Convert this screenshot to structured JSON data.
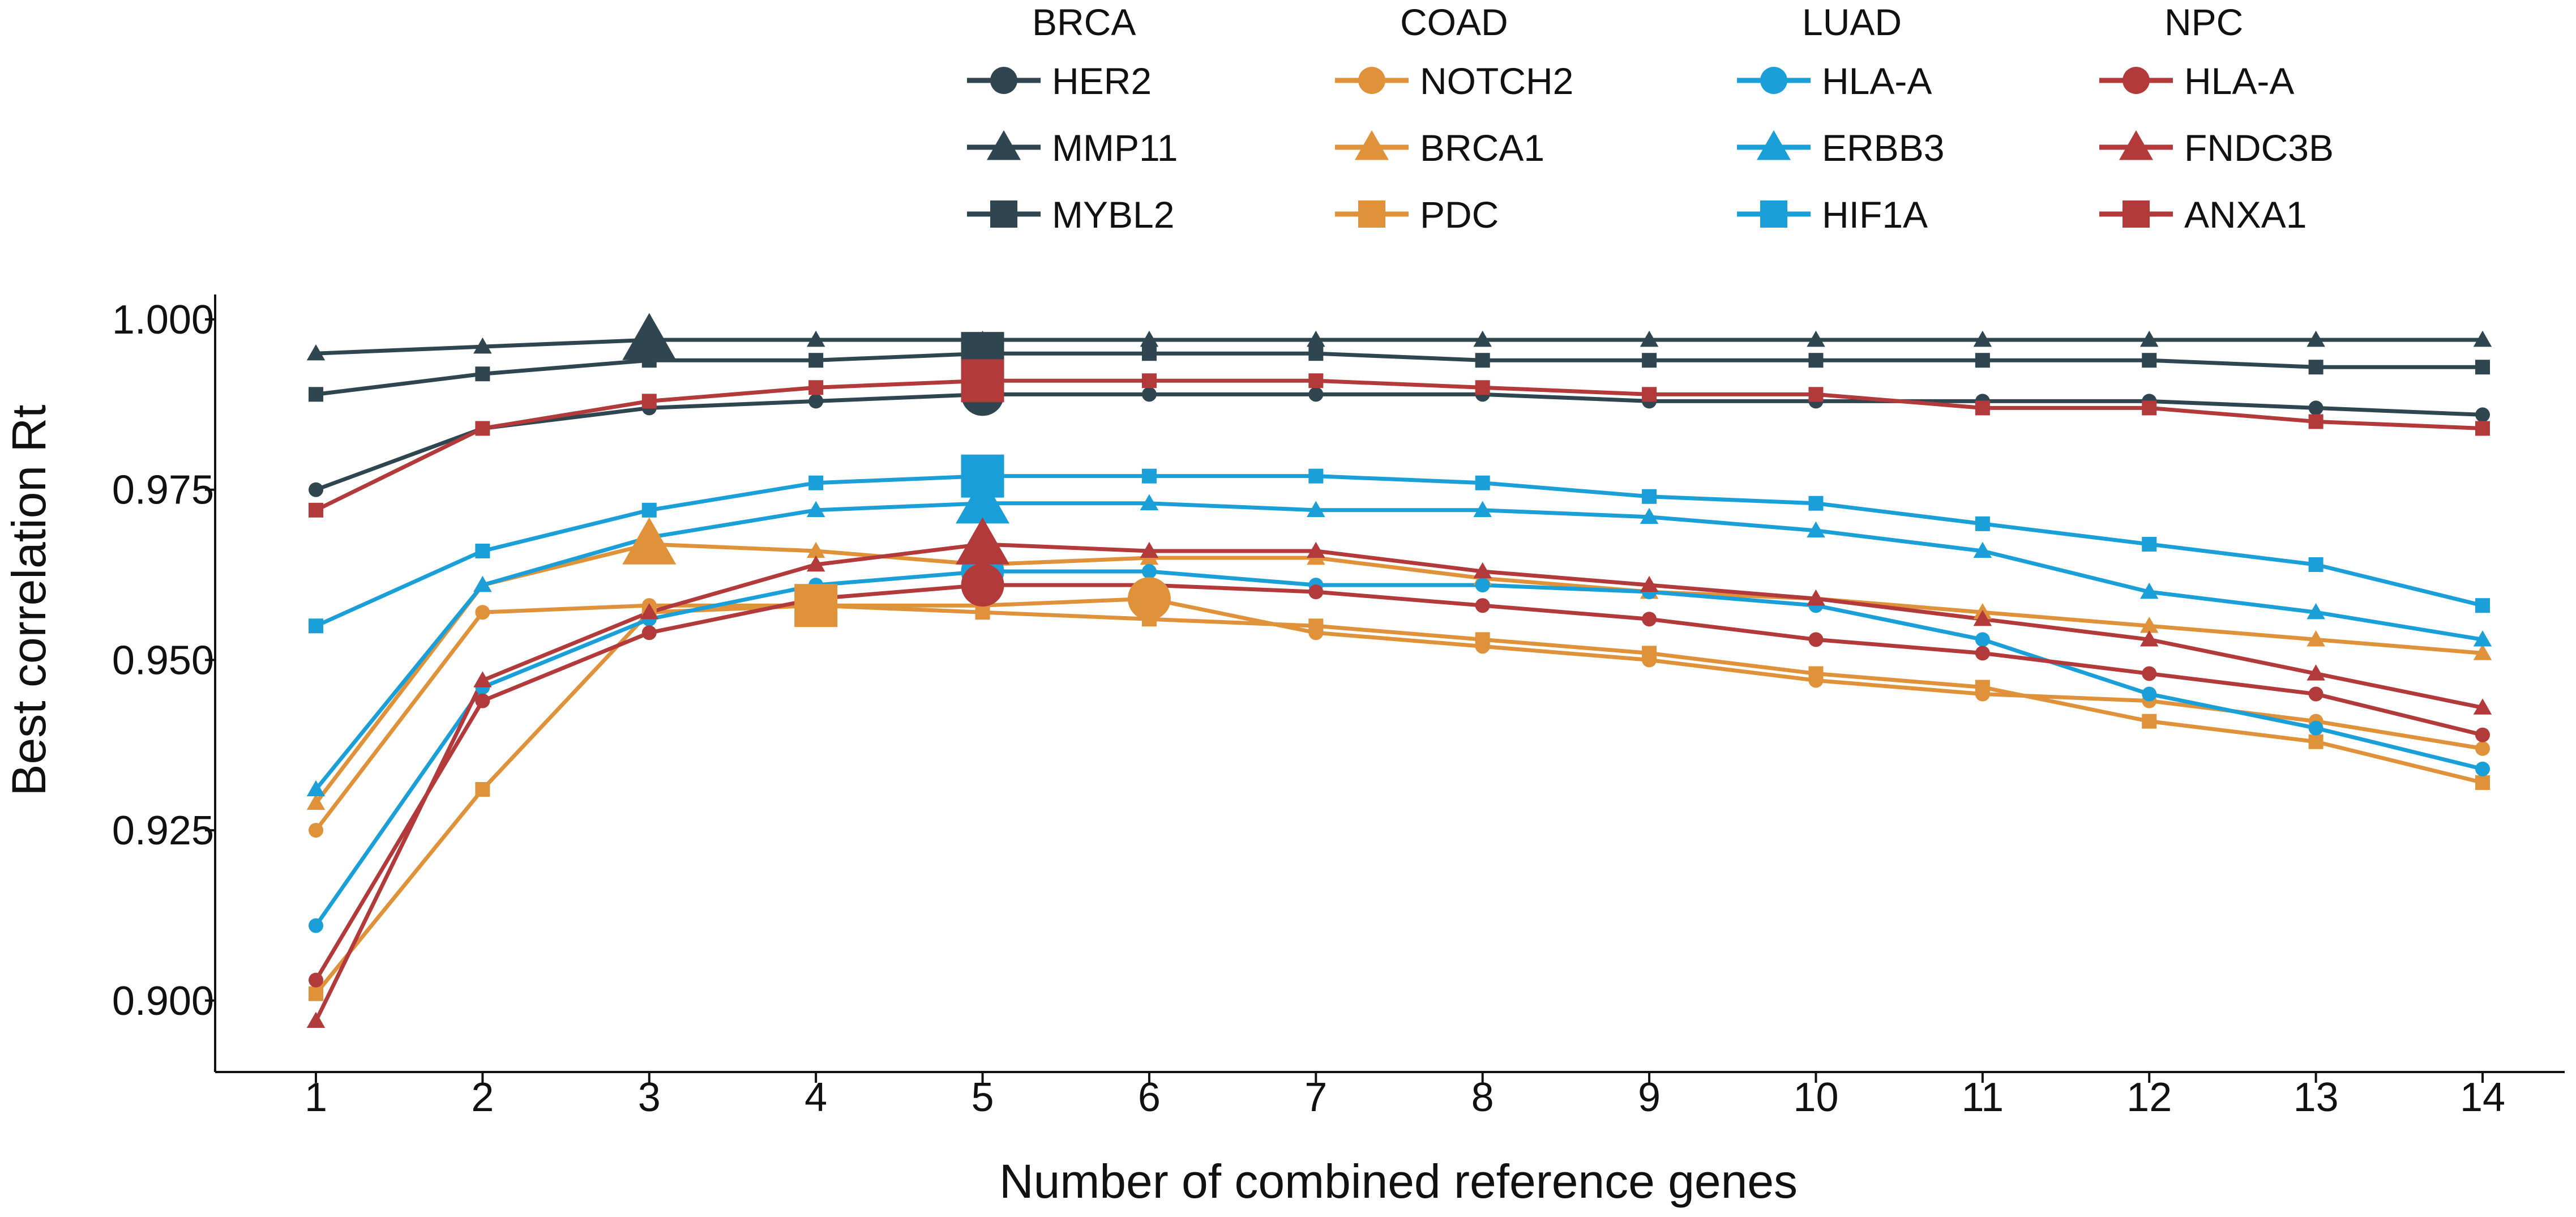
{
  "chart_data": {
    "type": "line",
    "title": "",
    "xlabel": "Number of combined reference genes",
    "ylabel": "Best correlation Rt",
    "x": [
      1,
      2,
      3,
      4,
      5,
      6,
      7,
      8,
      9,
      10,
      11,
      12,
      13,
      14
    ],
    "xticks": [
      "1",
      "2",
      "3",
      "4",
      "5",
      "6",
      "7",
      "8",
      "9",
      "10",
      "11",
      "12",
      "13",
      "14"
    ],
    "yticks": [
      "0.900",
      "0.925",
      "0.950",
      "0.975",
      "1.000"
    ],
    "ytick_values": [
      0.9,
      0.925,
      0.95,
      0.975,
      1.0
    ],
    "xlim": [
      0.4,
      14.5
    ],
    "ylim": [
      0.891,
      1.002
    ],
    "grid": false,
    "legend_position": "top",
    "groups": [
      {
        "name": "BRCA",
        "color": "#2f4550",
        "series_indices": [
          0,
          1,
          2
        ]
      },
      {
        "name": "COAD",
        "color": "#e0923a",
        "series_indices": [
          3,
          4,
          5
        ]
      },
      {
        "name": "LUAD",
        "color": "#1a9fd8",
        "series_indices": [
          6,
          7,
          8
        ]
      },
      {
        "name": "NPC",
        "color": "#b23a3a",
        "series_indices": [
          9,
          10,
          11
        ]
      }
    ],
    "series": [
      {
        "name": "HER2",
        "group": "BRCA",
        "marker": "circle",
        "color": "#2f4550",
        "highlight_x": 5,
        "values": [
          0.975,
          0.984,
          0.987,
          0.988,
          0.989,
          0.989,
          0.989,
          0.989,
          0.988,
          0.988,
          0.988,
          0.988,
          0.987,
          0.986
        ]
      },
      {
        "name": "MMP11",
        "group": "BRCA",
        "marker": "triangle",
        "color": "#2f4550",
        "highlight_x": 3,
        "values": [
          0.995,
          0.996,
          0.997,
          0.997,
          0.997,
          0.997,
          0.997,
          0.997,
          0.997,
          0.997,
          0.997,
          0.997,
          0.997,
          0.997
        ]
      },
      {
        "name": "MYBL2",
        "group": "BRCA",
        "marker": "square",
        "color": "#2f4550",
        "highlight_x": 5,
        "values": [
          0.989,
          0.992,
          0.994,
          0.994,
          0.995,
          0.995,
          0.995,
          0.994,
          0.994,
          0.994,
          0.994,
          0.994,
          0.993,
          0.993
        ]
      },
      {
        "name": "NOTCH2",
        "group": "COAD",
        "marker": "circle",
        "color": "#e0923a",
        "highlight_x": 6,
        "values": [
          0.925,
          0.957,
          0.958,
          0.958,
          0.958,
          0.959,
          0.954,
          0.952,
          0.95,
          0.947,
          0.945,
          0.944,
          0.941,
          0.937
        ]
      },
      {
        "name": "BRCA1",
        "group": "COAD",
        "marker": "triangle",
        "color": "#e0923a",
        "highlight_x": 3,
        "values": [
          0.929,
          0.961,
          0.967,
          0.966,
          0.964,
          0.965,
          0.965,
          0.962,
          0.96,
          0.959,
          0.957,
          0.955,
          0.953,
          0.951
        ]
      },
      {
        "name": "PDC",
        "group": "COAD",
        "marker": "square",
        "color": "#e0923a",
        "highlight_x": 4,
        "values": [
          0.901,
          0.931,
          0.957,
          0.958,
          0.957,
          0.956,
          0.955,
          0.953,
          0.951,
          0.948,
          0.946,
          0.941,
          0.938,
          0.932
        ]
      },
      {
        "name": "HLA-A",
        "group": "LUAD",
        "marker": "circle",
        "color": "#1a9fd8",
        "highlight_x": 5,
        "values": [
          0.911,
          0.946,
          0.956,
          0.961,
          0.963,
          0.963,
          0.961,
          0.961,
          0.96,
          0.958,
          0.953,
          0.945,
          0.94,
          0.934
        ]
      },
      {
        "name": "ERBB3",
        "group": "LUAD",
        "marker": "triangle",
        "color": "#1a9fd8",
        "highlight_x": 5,
        "values": [
          0.931,
          0.961,
          0.968,
          0.972,
          0.973,
          0.973,
          0.972,
          0.972,
          0.971,
          0.969,
          0.966,
          0.96,
          0.957,
          0.953
        ]
      },
      {
        "name": "HIF1A",
        "group": "LUAD",
        "marker": "square",
        "color": "#1a9fd8",
        "highlight_x": 5,
        "values": [
          0.955,
          0.966,
          0.972,
          0.976,
          0.977,
          0.977,
          0.977,
          0.976,
          0.974,
          0.973,
          0.97,
          0.967,
          0.964,
          0.958
        ]
      },
      {
        "name": "HLA-A",
        "group": "NPC",
        "marker": "circle",
        "color": "#b23a3a",
        "highlight_x": 5,
        "values": [
          0.903,
          0.944,
          0.954,
          0.959,
          0.961,
          0.961,
          0.96,
          0.958,
          0.956,
          0.953,
          0.951,
          0.948,
          0.945,
          0.939
        ]
      },
      {
        "name": "FNDC3B",
        "group": "NPC",
        "marker": "triangle",
        "color": "#b23a3a",
        "highlight_x": 5,
        "values": [
          0.897,
          0.947,
          0.957,
          0.964,
          0.967,
          0.966,
          0.966,
          0.963,
          0.961,
          0.959,
          0.956,
          0.953,
          0.948,
          0.943
        ]
      },
      {
        "name": "ANXA1",
        "group": "NPC",
        "marker": "square",
        "color": "#b23a3a",
        "highlight_x": 5,
        "values": [
          0.972,
          0.984,
          0.988,
          0.99,
          0.991,
          0.991,
          0.991,
          0.99,
          0.989,
          0.989,
          0.987,
          0.987,
          0.985,
          0.984
        ]
      }
    ]
  }
}
